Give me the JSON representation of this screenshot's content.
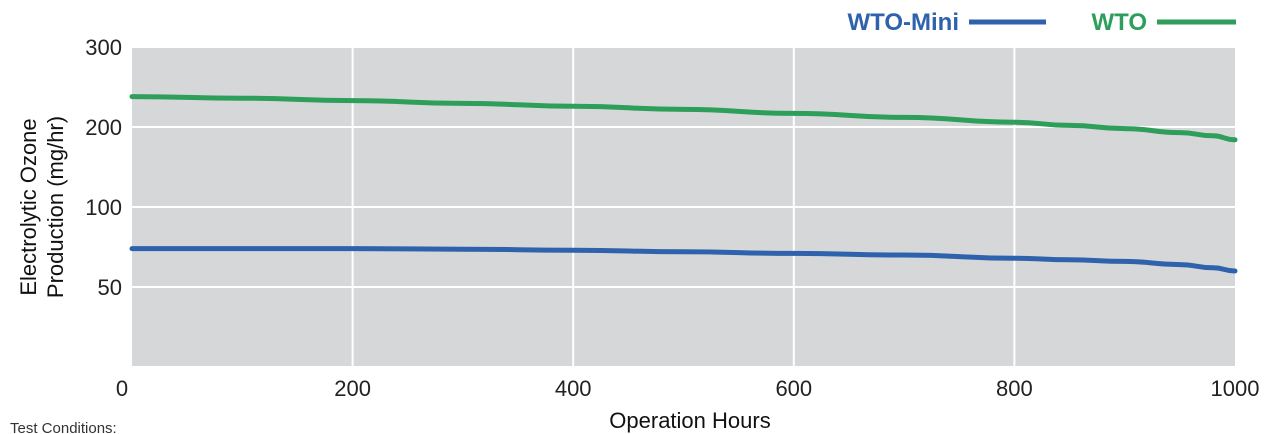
{
  "chart_data": {
    "type": "line",
    "title": "",
    "xlabel": "Operation Hours",
    "ylabel_lines": [
      "Electrolytic Ozone",
      "Production (mg/hr)"
    ],
    "xlim": [
      0,
      1000
    ],
    "y_ticks": [
      50,
      100,
      200,
      300
    ],
    "x_ticks": [
      0,
      200,
      400,
      600,
      800,
      1000
    ],
    "grid": true,
    "legend_position": "top-right",
    "series": [
      {
        "name": "WTO-Mini",
        "color": "#2e62ad",
        "x": [
          0,
          100,
          200,
          300,
          400,
          500,
          600,
          700,
          800,
          850,
          900,
          950,
          980,
          1000
        ],
        "y": [
          74,
          74,
          74,
          73.6,
          73,
          72,
          71,
          70,
          68,
          67,
          66,
          64,
          62,
          60
        ]
      },
      {
        "name": "WTO",
        "color": "#2e9e5b",
        "x": [
          0,
          100,
          200,
          300,
          400,
          500,
          600,
          700,
          800,
          850,
          900,
          950,
          980,
          1000
        ],
        "y": [
          238,
          236,
          233,
          229.5,
          226,
          222,
          217,
          212,
          206,
          202,
          198,
          193,
          189,
          184
        ]
      }
    ]
  },
  "footnote": "Test Conditions:"
}
